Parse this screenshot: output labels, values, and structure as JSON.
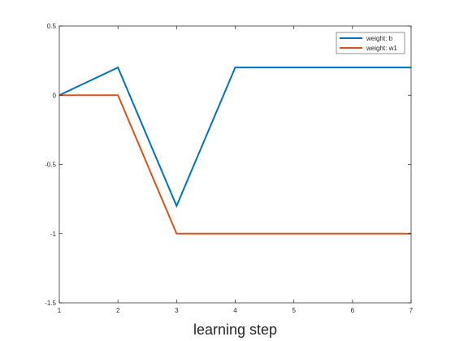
{
  "chart_data": {
    "type": "line",
    "title": "",
    "xlabel": "learning step",
    "ylabel": "",
    "xlim": [
      1,
      7
    ],
    "ylim": [
      -1.5,
      0.5
    ],
    "xticks": [
      1,
      2,
      3,
      4,
      5,
      6,
      7
    ],
    "xtick_labels": [
      "1",
      "2",
      "3",
      "4",
      "5",
      "6",
      "7"
    ],
    "yticks": [
      0.5,
      0,
      -0.5,
      -1,
      -1.5
    ],
    "ytick_labels": [
      "0.5",
      "0",
      "-0.5",
      "-1",
      "-1.5"
    ],
    "grid": false,
    "legend_position": "top-right",
    "x": [
      1,
      2,
      3,
      4,
      5,
      6,
      7
    ],
    "series": [
      {
        "name": "weight: b",
        "color": "#0072BD",
        "values": [
          0,
          0.2,
          -0.8,
          0.2,
          0.2,
          0.2,
          0.2
        ]
      },
      {
        "name": "weight: w1",
        "color": "#D95319",
        "values": [
          0,
          0,
          -1,
          -1,
          -1,
          -1,
          -1
        ]
      }
    ]
  }
}
